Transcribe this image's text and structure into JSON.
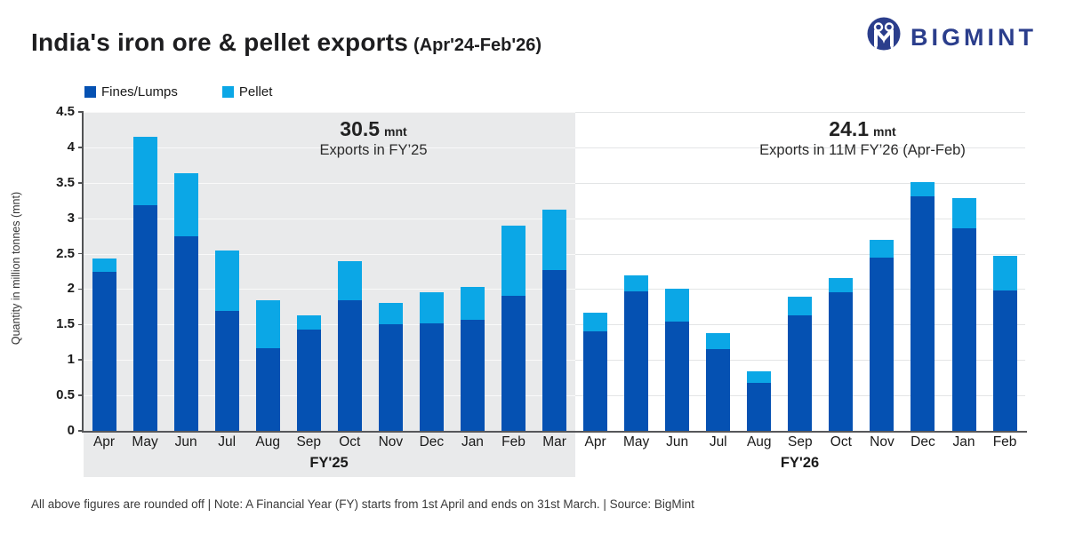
{
  "header": {
    "title": "India's iron ore & pellet exports",
    "title_suffix": "(Apr'24-Feb'26)",
    "brand": "BIGMINT"
  },
  "legend": [
    {
      "label": "Fines/Lumps",
      "color": "#0551b2"
    },
    {
      "label": "Pellet",
      "color": "#0ba7e6"
    }
  ],
  "chart_data": {
    "type": "bar",
    "stacked": true,
    "title": "India's iron ore & pellet exports (Apr'24-Feb'26)",
    "ylabel": "Quantity in million tonnes (mnt)",
    "ylim": [
      0,
      4.5
    ],
    "ytick_step": 0.5,
    "grid": true,
    "legend_position": "top-left",
    "highlight_band_color": "#e9eaeb",
    "series_colors": {
      "Fines/Lumps": "#0551b2",
      "Pellet": "#0ba7e6"
    },
    "groups": [
      {
        "label": "FY'25",
        "highlighted": true,
        "categories": [
          "Apr",
          "May",
          "Jun",
          "Jul",
          "Aug",
          "Sep",
          "Oct",
          "Nov",
          "Dec",
          "Jan",
          "Feb",
          "Mar"
        ],
        "series": [
          {
            "name": "Fines/Lumps",
            "values": [
              2.25,
              3.18,
              2.74,
              1.69,
              1.17,
              1.43,
              1.84,
              1.51,
              1.52,
              1.57,
              1.9,
              2.27
            ]
          },
          {
            "name": "Pellet",
            "values": [
              0.18,
              0.97,
              0.89,
              0.85,
              0.67,
              0.2,
              0.56,
              0.29,
              0.43,
              0.46,
              0.99,
              0.85
            ]
          }
        ],
        "totals": [
          2.43,
          4.15,
          3.63,
          2.54,
          1.84,
          1.63,
          2.4,
          1.8,
          1.95,
          2.03,
          2.89,
          3.12
        ],
        "annotation": {
          "value": "30.5",
          "unit": "mnt",
          "caption": "Exports in FY’25"
        }
      },
      {
        "label": "FY'26",
        "highlighted": false,
        "categories": [
          "Apr",
          "May",
          "Jun",
          "Jul",
          "Aug",
          "Sep",
          "Oct",
          "Nov",
          "Dec",
          "Jan",
          "Feb"
        ],
        "series": [
          {
            "name": "Fines/Lumps",
            "values": [
              1.4,
              1.97,
              1.54,
              1.16,
              0.68,
              1.63,
              1.95,
              2.44,
              3.31,
              2.86,
              1.98
            ]
          },
          {
            "name": "Pellet",
            "values": [
              0.27,
              0.23,
              0.46,
              0.22,
              0.16,
              0.26,
              0.21,
              0.25,
              0.2,
              0.42,
              0.49
            ]
          }
        ],
        "totals": [
          1.67,
          2.2,
          2.0,
          1.38,
          0.84,
          1.89,
          2.16,
          2.69,
          3.51,
          3.28,
          2.47
        ],
        "annotation": {
          "value": "24.1",
          "unit": "mnt",
          "caption": "Exports in 11M FY’26 (Apr-Feb)"
        }
      }
    ]
  },
  "footer": {
    "text": "All above figures are rounded off  |  Note: A Financial Year (FY) starts from 1st April and ends on 31st March.  |  Source: BigMint"
  }
}
